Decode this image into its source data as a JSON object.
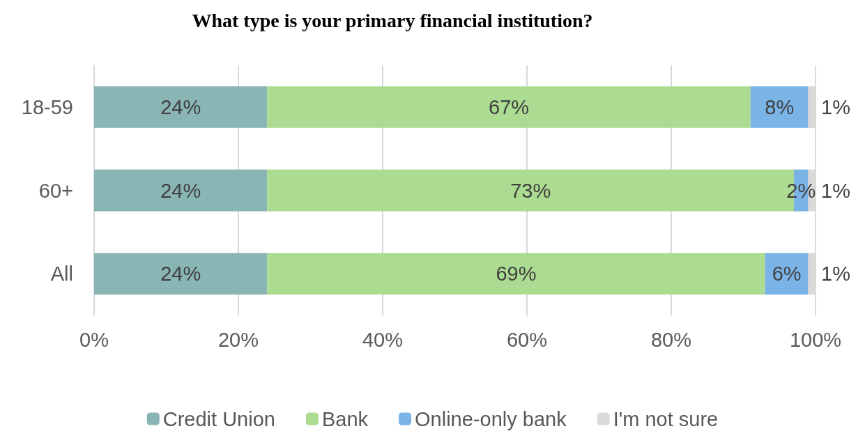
{
  "chart_data": {
    "type": "bar",
    "orientation": "horizontal",
    "stacked": true,
    "title": "What type is your primary financial institution?",
    "categories": [
      "18-59",
      "60+",
      "All"
    ],
    "series": [
      {
        "name": "Credit Union",
        "color": "#8ab5b5",
        "values": [
          24,
          24,
          24
        ],
        "value_labels": [
          "24%",
          "24%",
          "24%"
        ]
      },
      {
        "name": "Bank",
        "color": "#acdb92",
        "values": [
          67,
          73,
          69
        ],
        "value_labels": [
          "67%",
          "73%",
          "69%"
        ]
      },
      {
        "name": "Online-only bank",
        "color": "#7ab3e6",
        "values": [
          8,
          2,
          6
        ],
        "value_labels": [
          "8%",
          "2%",
          "6%"
        ]
      },
      {
        "name": "I'm not sure",
        "color": "#d9d9d9",
        "values": [
          1,
          1,
          1
        ],
        "value_labels": [
          "1%",
          "1%",
          "1%"
        ]
      }
    ],
    "xlim": [
      0,
      100
    ],
    "xticks": [
      {
        "value": 0,
        "label": "0%"
      },
      {
        "value": 20,
        "label": "20%"
      },
      {
        "value": 40,
        "label": "40%"
      },
      {
        "value": 60,
        "label": "60%"
      },
      {
        "value": 80,
        "label": "80%"
      },
      {
        "value": 100,
        "label": "100%"
      }
    ],
    "grid": "x",
    "legend": "bottom"
  }
}
